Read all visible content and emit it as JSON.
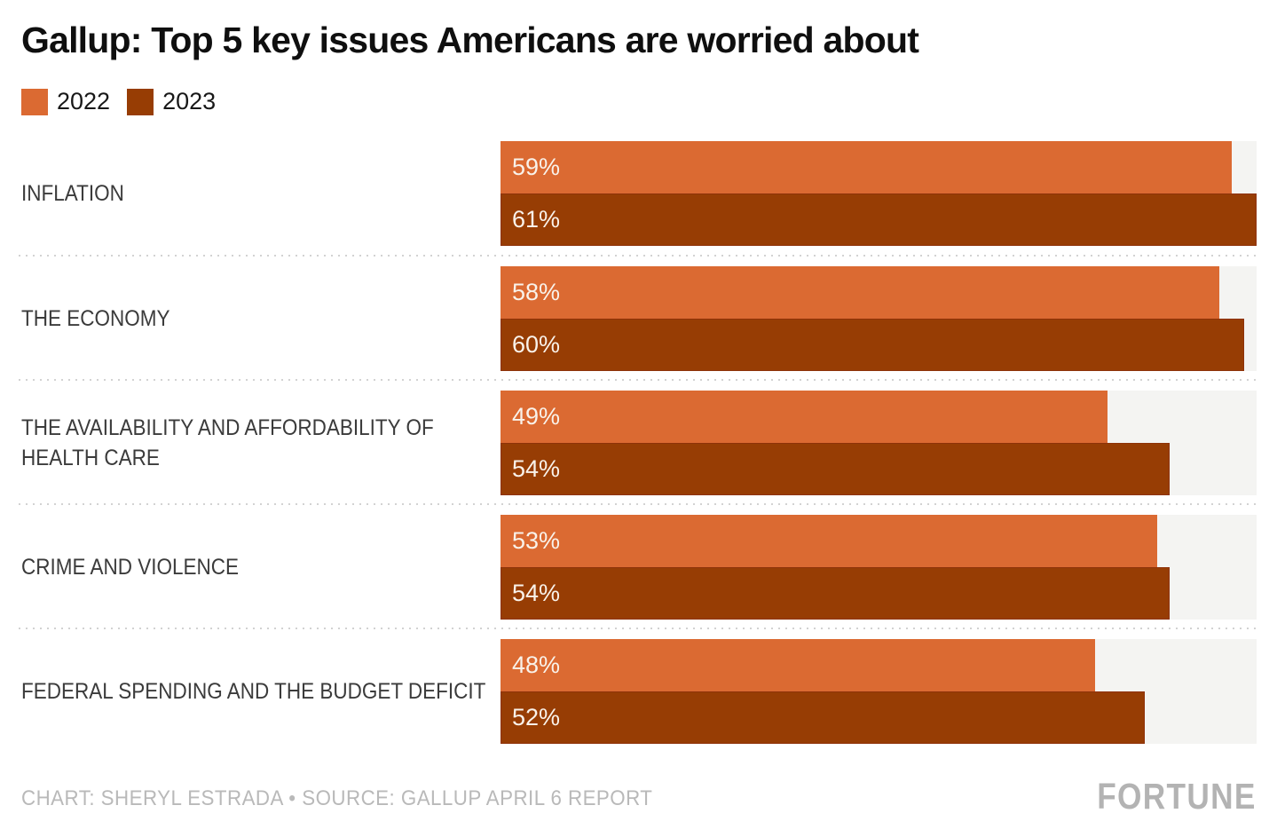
{
  "title": "Gallup: Top 5 key issues Americans are worried about",
  "legend": [
    {
      "label": "2022",
      "color": "#DB6A32"
    },
    {
      "label": "2023",
      "color": "#973D04"
    }
  ],
  "category_display_lines": [
    [
      "INFLATION"
    ],
    [
      "THE ECONOMY"
    ],
    [
      "THE AVAILABILITY AND AFFORDABILITY OF",
      "HEALTH CARE"
    ],
    [
      "CRIME AND VIOLENCE"
    ],
    [
      "FEDERAL SPENDING AND THE BUDGET DEFICIT"
    ]
  ],
  "footer": {
    "credit": "CHART: SHERYL ESTRADA • SOURCE: GALLUP APRIL 6 REPORT",
    "brand": "FORTUNE"
  },
  "colors": {
    "bar_2022": "#DB6A32",
    "bar_2023": "#973D04",
    "bar_2023_outline": "#8C2D0C",
    "track_background": "#F4F4F2",
    "separator_dots": "#D2D2D2",
    "title_text": "#0F0F0F",
    "category_text": "#3B3B3B",
    "value_text": "#F9F2EA",
    "footer_text": "#B9B9B9",
    "page_background": "#FFFFFF"
  },
  "chart_data": {
    "type": "bar",
    "orientation": "horizontal",
    "title": "Gallup: Top 5 key issues Americans are worried about",
    "categories": [
      "INFLATION",
      "THE ECONOMY",
      "THE AVAILABILITY AND AFFORDABILITY OF HEALTH CARE",
      "CRIME AND VIOLENCE",
      "FEDERAL SPENDING AND THE BUDGET DEFICIT"
    ],
    "series": [
      {
        "name": "2022",
        "color": "#DB6A32",
        "values": [
          59,
          58,
          49,
          53,
          48
        ]
      },
      {
        "name": "2023",
        "color": "#973D04",
        "values": [
          61,
          60,
          54,
          54,
          52
        ]
      }
    ],
    "value_suffix": "%",
    "xlim": [
      0,
      61
    ],
    "grid": false,
    "value_labels": "inside-left",
    "legend_position": "top-left"
  }
}
